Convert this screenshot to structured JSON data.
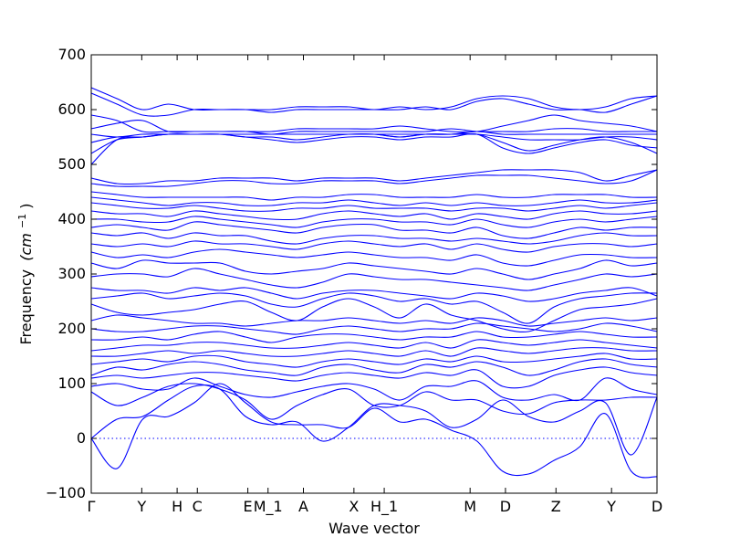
{
  "chart_data": {
    "type": "line",
    "xlabel": "Wave vector",
    "ylabel": "Frequency",
    "ylabel_unit": "(cm",
    "ylabel_unit_sup": "−1",
    "ylabel_unit_close": ")",
    "ylim": [
      -100,
      700
    ],
    "yticks": [
      -100,
      0,
      100,
      200,
      300,
      400,
      500,
      600,
      700
    ],
    "ytick_labels": [
      "−100",
      "0",
      "100",
      "200",
      "300",
      "400",
      "500",
      "600",
      "700"
    ],
    "x_high_symmetry": [
      {
        "label": "Γ",
        "x": 0.0
      },
      {
        "label": "Y",
        "x": 0.5
      },
      {
        "label": "H",
        "x": 0.85
      },
      {
        "label": "C",
        "x": 1.05
      },
      {
        "label": "E",
        "x": 1.55
      },
      {
        "label": "M_1",
        "x": 1.75
      },
      {
        "label": "A",
        "x": 2.1
      },
      {
        "label": "X",
        "x": 2.6
      },
      {
        "label": "H_1",
        "x": 2.9
      },
      {
        "label": "M",
        "x": 3.75
      },
      {
        "label": "D",
        "x": 4.1
      },
      {
        "label": "Z",
        "x": 4.6
      },
      {
        "label": "Y",
        "x": 5.15
      },
      {
        "label": "D",
        "x": 5.6
      }
    ],
    "xlim": [
      0.0,
      5.6
    ],
    "zero_line": 0,
    "series": [
      {
        "values": [
          0,
          -55,
          35,
          40,
          65,
          100,
          65,
          30,
          25,
          25,
          20,
          55,
          30,
          35,
          15,
          -5,
          -60,
          -65,
          -40,
          -15,
          45,
          -60,
          -70
        ]
      },
      {
        "values": [
          0,
          35,
          40,
          70,
          95,
          90,
          40,
          25,
          30,
          -5,
          20,
          60,
          60,
          50,
          20,
          35,
          70,
          40,
          30,
          50,
          65,
          -30,
          75
        ]
      },
      {
        "values": [
          85,
          60,
          75,
          95,
          100,
          90,
          70,
          35,
          60,
          80,
          90,
          60,
          60,
          85,
          70,
          70,
          50,
          45,
          65,
          70,
          70,
          75,
          75
        ]
      },
      {
        "values": [
          95,
          100,
          90,
          90,
          110,
          95,
          80,
          75,
          85,
          95,
          100,
          90,
          70,
          95,
          95,
          105,
          75,
          70,
          80,
          70,
          110,
          90,
          80
        ]
      },
      {
        "values": [
          110,
          115,
          110,
          115,
          120,
          120,
          115,
          110,
          105,
          115,
          120,
          115,
          110,
          120,
          115,
          125,
          95,
          95,
          115,
          125,
          130,
          120,
          115
        ]
      },
      {
        "values": [
          115,
          130,
          125,
          135,
          140,
          135,
          125,
          120,
          115,
          130,
          135,
          125,
          120,
          135,
          130,
          140,
          130,
          115,
          125,
          140,
          145,
          135,
          130
        ]
      },
      {
        "values": [
          135,
          140,
          145,
          140,
          150,
          150,
          140,
          135,
          130,
          140,
          145,
          140,
          135,
          145,
          140,
          150,
          140,
          140,
          145,
          150,
          155,
          145,
          145
        ]
      },
      {
        "values": [
          150,
          150,
          155,
          160,
          155,
          160,
          155,
          150,
          150,
          155,
          160,
          155,
          150,
          160,
          150,
          165,
          160,
          155,
          160,
          165,
          165,
          160,
          160
        ]
      },
      {
        "values": [
          160,
          165,
          170,
          170,
          175,
          175,
          170,
          165,
          165,
          170,
          175,
          170,
          165,
          175,
          165,
          180,
          175,
          170,
          175,
          180,
          175,
          170,
          165
        ]
      },
      {
        "values": [
          180,
          180,
          185,
          180,
          190,
          195,
          185,
          175,
          185,
          190,
          190,
          185,
          180,
          185,
          185,
          195,
          185,
          185,
          190,
          195,
          190,
          185,
          185
        ]
      },
      {
        "values": [
          200,
          195,
          195,
          200,
          205,
          205,
          200,
          195,
          190,
          200,
          205,
          200,
          195,
          200,
          200,
          210,
          205,
          200,
          195,
          200,
          210,
          205,
          195
        ]
      },
      {
        "values": [
          215,
          225,
          220,
          215,
          210,
          210,
          205,
          210,
          215,
          215,
          220,
          215,
          210,
          215,
          210,
          220,
          215,
          205,
          210,
          215,
          220,
          215,
          220
        ]
      },
      {
        "values": [
          245,
          230,
          225,
          230,
          235,
          245,
          250,
          230,
          215,
          240,
          255,
          240,
          220,
          245,
          225,
          215,
          200,
          195,
          215,
          235,
          240,
          245,
          255
        ]
      },
      {
        "values": [
          255,
          260,
          265,
          255,
          260,
          265,
          260,
          245,
          240,
          255,
          265,
          260,
          250,
          255,
          245,
          250,
          230,
          210,
          240,
          255,
          260,
          265,
          265
        ]
      },
      {
        "values": [
          275,
          270,
          270,
          265,
          275,
          270,
          275,
          265,
          255,
          265,
          270,
          270,
          265,
          260,
          255,
          265,
          260,
          250,
          255,
          265,
          270,
          275,
          260
        ]
      },
      {
        "values": [
          295,
          300,
          300,
          295,
          310,
          300,
          290,
          280,
          275,
          285,
          300,
          295,
          290,
          290,
          285,
          280,
          275,
          270,
          280,
          290,
          300,
          295,
          300
        ]
      },
      {
        "values": [
          320,
          310,
          325,
          320,
          320,
          320,
          305,
          300,
          305,
          310,
          320,
          315,
          310,
          305,
          300,
          310,
          300,
          290,
          300,
          310,
          325,
          315,
          320
        ]
      },
      {
        "values": [
          340,
          330,
          335,
          330,
          340,
          345,
          340,
          335,
          330,
          335,
          340,
          335,
          330,
          330,
          325,
          335,
          320,
          315,
          325,
          335,
          335,
          330,
          330
        ]
      },
      {
        "values": [
          355,
          350,
          355,
          350,
          360,
          355,
          355,
          350,
          345,
          355,
          360,
          355,
          350,
          355,
          345,
          355,
          345,
          340,
          350,
          355,
          355,
          350,
          355
        ]
      },
      {
        "values": [
          375,
          370,
          375,
          365,
          375,
          370,
          370,
          360,
          355,
          365,
          370,
          370,
          365,
          365,
          360,
          365,
          360,
          355,
          360,
          370,
          375,
          370,
          370
        ]
      },
      {
        "values": [
          385,
          390,
          385,
          380,
          395,
          390,
          385,
          380,
          375,
          385,
          390,
          390,
          380,
          380,
          375,
          385,
          370,
          365,
          375,
          385,
          380,
          385,
          385
        ]
      },
      {
        "values": [
          400,
          400,
          395,
          395,
          405,
          400,
          395,
          390,
          385,
          395,
          400,
          400,
          395,
          395,
          390,
          400,
          390,
          385,
          395,
          400,
          395,
          400,
          405
        ]
      },
      {
        "values": [
          415,
          410,
          410,
          405,
          415,
          410,
          405,
          400,
          400,
          410,
          415,
          410,
          405,
          410,
          400,
          410,
          405,
          400,
          410,
          415,
          410,
          410,
          415
        ]
      },
      {
        "values": [
          430,
          425,
          420,
          420,
          425,
          420,
          415,
          415,
          420,
          420,
          425,
          420,
          420,
          420,
          415,
          420,
          420,
          415,
          420,
          425,
          420,
          425,
          430
        ]
      },
      {
        "values": [
          440,
          435,
          430,
          425,
          430,
          430,
          425,
          425,
          430,
          430,
          435,
          430,
          425,
          430,
          425,
          430,
          425,
          425,
          430,
          435,
          430,
          430,
          435
        ]
      },
      {
        "values": [
          450,
          445,
          440,
          440,
          440,
          440,
          440,
          435,
          440,
          440,
          445,
          445,
          440,
          440,
          440,
          445,
          440,
          440,
          445,
          445,
          445,
          440,
          440
        ]
      },
      {
        "values": [
          465,
          460,
          460,
          460,
          465,
          470,
          470,
          465,
          465,
          470,
          470,
          470,
          465,
          470,
          475,
          480,
          480,
          480,
          475,
          470,
          465,
          470,
          490
        ]
      },
      {
        "values": [
          475,
          465,
          465,
          470,
          470,
          475,
          475,
          475,
          470,
          475,
          475,
          475,
          470,
          475,
          480,
          485,
          490,
          490,
          490,
          485,
          470,
          480,
          490
        ]
      },
      {
        "values": [
          500,
          545,
          550,
          555,
          555,
          555,
          550,
          550,
          545,
          550,
          555,
          555,
          550,
          555,
          555,
          555,
          540,
          525,
          535,
          545,
          550,
          540,
          520
        ]
      },
      {
        "values": [
          520,
          545,
          550,
          555,
          555,
          555,
          550,
          545,
          540,
          545,
          550,
          550,
          545,
          550,
          550,
          555,
          530,
          520,
          530,
          540,
          545,
          535,
          530
        ]
      },
      {
        "values": [
          540,
          550,
          550,
          555,
          555,
          555,
          555,
          555,
          555,
          555,
          555,
          555,
          550,
          555,
          555,
          555,
          550,
          545,
          545,
          545,
          550,
          550,
          545
        ]
      },
      {
        "values": [
          555,
          550,
          555,
          555,
          555,
          555,
          555,
          555,
          555,
          555,
          555,
          555,
          555,
          555,
          555,
          560,
          555,
          555,
          555,
          555,
          555,
          555,
          555
        ]
      },
      {
        "values": [
          565,
          575,
          580,
          560,
          560,
          560,
          560,
          555,
          560,
          560,
          560,
          560,
          560,
          560,
          565,
          560,
          560,
          560,
          565,
          565,
          560,
          560,
          560
        ]
      },
      {
        "values": [
          590,
          580,
          560,
          560,
          560,
          560,
          560,
          560,
          565,
          565,
          565,
          565,
          570,
          565,
          560,
          560,
          570,
          580,
          590,
          580,
          575,
          570,
          560
        ]
      },
      {
        "values": [
          630,
          610,
          590,
          590,
          600,
          600,
          600,
          595,
          600,
          600,
          600,
          600,
          600,
          605,
          600,
          615,
          620,
          610,
          600,
          600,
          595,
          610,
          625
        ]
      },
      {
        "values": [
          640,
          620,
          600,
          610,
          600,
          600,
          600,
          600,
          605,
          605,
          605,
          600,
          605,
          600,
          605,
          620,
          625,
          620,
          605,
          600,
          605,
          620,
          625
        ]
      }
    ]
  }
}
